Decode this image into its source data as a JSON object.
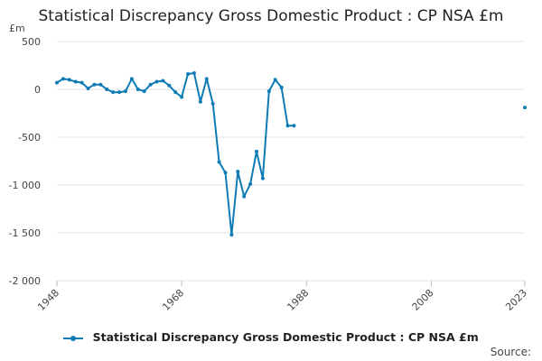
{
  "chart_data": {
    "type": "line",
    "title": "Statistical Discrepancy Gross Domestic Product : CP NSA £m",
    "ylabel": "£m",
    "xlabel": "",
    "ylim": [
      -2000,
      500
    ],
    "xlim": [
      1948,
      2023
    ],
    "yticks": [
      {
        "value": 500,
        "label": "500"
      },
      {
        "value": 0,
        "label": "0"
      },
      {
        "value": -500,
        "label": "-500"
      },
      {
        "value": -1000,
        "label": "-1 000"
      },
      {
        "value": -1500,
        "label": "-1 500"
      },
      {
        "value": -2000,
        "label": "-2 000"
      }
    ],
    "xticks": [
      {
        "value": 1948,
        "label": "1948"
      },
      {
        "value": 1968,
        "label": "1968"
      },
      {
        "value": 1988,
        "label": "1988"
      },
      {
        "value": 2008,
        "label": "2008"
      },
      {
        "value": 2023,
        "label": "2023"
      }
    ],
    "grid": true,
    "legend_position": "bottom",
    "series": [
      {
        "name": "Statistical Discrepancy Gross Domestic Product : CP NSA £m",
        "color": "#0e7bb5",
        "segments": [
          {
            "x": [
              1948,
              1949,
              1950,
              1951,
              1952,
              1953,
              1954,
              1955,
              1956,
              1957,
              1958,
              1959,
              1960,
              1961,
              1962,
              1963,
              1964,
              1965,
              1966,
              1967,
              1968,
              1969,
              1970,
              1971,
              1972,
              1973,
              1974,
              1975,
              1976,
              1977,
              1978,
              1979,
              1980,
              1981,
              1982,
              1983,
              1984,
              1985,
              1986
            ],
            "y": [
              70,
              110,
              100,
              80,
              70,
              10,
              50,
              50,
              0,
              -30,
              -30,
              -20,
              110,
              0,
              -20,
              50,
              80,
              90,
              40,
              -30,
              -80,
              160,
              170,
              -130,
              110,
              -150,
              -760,
              -870,
              -1520,
              -860,
              -1120,
              -990,
              -650,
              -930,
              -20,
              100,
              20,
              -380,
              -380
            ]
          },
          {
            "x": [
              2023
            ],
            "y": [
              -190
            ]
          }
        ]
      }
    ]
  },
  "legend": {
    "label": "Statistical Discrepancy Gross Domestic Product : CP NSA £m"
  },
  "source": {
    "label": "Source:"
  }
}
